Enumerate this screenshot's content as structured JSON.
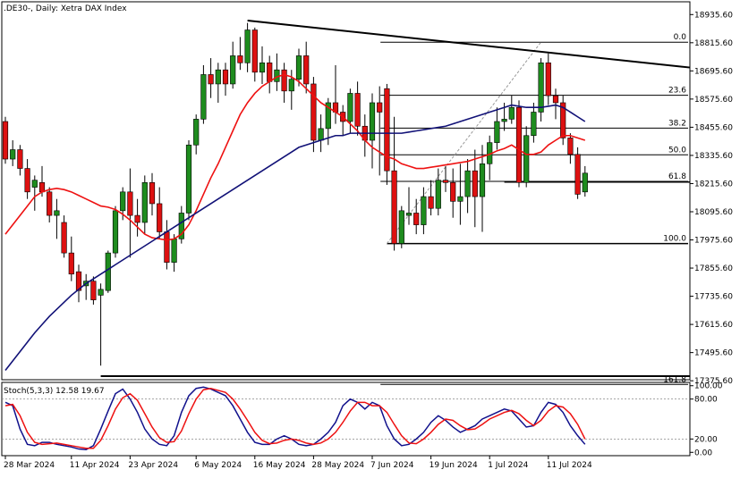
{
  "header": {
    "symbol": ".DE30-",
    "timeframe": "Daily",
    "instrument": "Xetra DAX Index",
    "title_text": ".DE30-, Daily:  Xetra DAX Index"
  },
  "oscillator_header": {
    "text": "Stoch(5,3,3) 12.58 19.67"
  },
  "colors": {
    "bull": "#1e8c1e",
    "bear": "#dd1111",
    "sma_fast": "#ee1111",
    "sma_slow": "#111177",
    "stoch_main": "#11118c",
    "stoch_signal": "#ee1111",
    "hline": "#000000",
    "text": "#000000"
  },
  "chart_data": [
    {
      "type": "candlestick",
      "title": ".DE30-, Daily:  Xetra DAX Index",
      "ylim": [
        17380,
        18990
      ],
      "y_ticks": [
        "18935.60",
        "18815.60",
        "18695.60",
        "18575.60",
        "18455.60",
        "18335.60",
        "18215.60",
        "18095.60",
        "17975.60",
        "17855.60",
        "17735.60",
        "17615.60",
        "17495.60",
        "17375.60"
      ],
      "x_ticks": [
        {
          "label": "28 Mar 2024",
          "bar": 0
        },
        {
          "label": "11 Apr 2024",
          "bar": 9
        },
        {
          "label": "23 Apr 2024",
          "bar": 17
        },
        {
          "label": "6 May 2024",
          "bar": 26
        },
        {
          "label": "16 May 2024",
          "bar": 34
        },
        {
          "label": "28 May 2024",
          "bar": 42
        },
        {
          "label": "7 Jun 2024",
          "bar": 50
        },
        {
          "label": "19 Jun 2024",
          "bar": 58
        },
        {
          "label": "1 Jul 2024",
          "bar": 66
        },
        {
          "label": "11 Jul 2024",
          "bar": 74
        }
      ],
      "ohlc": [
        [
          18480,
          18500,
          18300,
          18320
        ],
        [
          18320,
          18400,
          18290,
          18360
        ],
        [
          18360,
          18380,
          18250,
          18280
        ],
        [
          18280,
          18320,
          18150,
          18180
        ],
        [
          18200,
          18250,
          18100,
          18230
        ],
        [
          18220,
          18290,
          18160,
          18180
        ],
        [
          18180,
          18200,
          18050,
          18080
        ],
        [
          18080,
          18150,
          17980,
          18100
        ],
        [
          18050,
          18080,
          17900,
          17920
        ],
        [
          17920,
          17990,
          17800,
          17830
        ],
        [
          17840,
          17870,
          17710,
          17760
        ],
        [
          17780,
          17830,
          17720,
          17800
        ],
        [
          17800,
          17820,
          17700,
          17720
        ],
        [
          17740,
          17790,
          17440,
          17765
        ],
        [
          17760,
          17930,
          17750,
          17920
        ],
        [
          17920,
          18120,
          17900,
          18100
        ],
        [
          18100,
          18200,
          18060,
          18180
        ],
        [
          18180,
          18280,
          17900,
          18080
        ],
        [
          18080,
          18150,
          17990,
          18050
        ],
        [
          18050,
          18250,
          18000,
          18220
        ],
        [
          18220,
          18260,
          18080,
          18130
        ],
        [
          18130,
          18200,
          17980,
          18010
        ],
        [
          18010,
          18060,
          17850,
          17880
        ],
        [
          17880,
          18000,
          17840,
          17980
        ],
        [
          17980,
          18120,
          17960,
          18090
        ],
        [
          18090,
          18400,
          18060,
          18380
        ],
        [
          18380,
          18510,
          18340,
          18490
        ],
        [
          18490,
          18720,
          18470,
          18680
        ],
        [
          18680,
          18750,
          18580,
          18640
        ],
        [
          18640,
          18730,
          18560,
          18700
        ],
        [
          18700,
          18730,
          18590,
          18640
        ],
        [
          18640,
          18820,
          18620,
          18760
        ],
        [
          18760,
          18840,
          18700,
          18730
        ],
        [
          18730,
          18900,
          18690,
          18870
        ],
        [
          18870,
          18880,
          18650,
          18690
        ],
        [
          18690,
          18800,
          18640,
          18730
        ],
        [
          18730,
          18760,
          18600,
          18650
        ],
        [
          18650,
          18770,
          18610,
          18700
        ],
        [
          18700,
          18730,
          18560,
          18610
        ],
        [
          18610,
          18700,
          18530,
          18660
        ],
        [
          18660,
          18790,
          18630,
          18760
        ],
        [
          18760,
          18820,
          18600,
          18640
        ],
        [
          18640,
          18670,
          18350,
          18400
        ],
        [
          18400,
          18510,
          18350,
          18450
        ],
        [
          18450,
          18580,
          18380,
          18560
        ],
        [
          18560,
          18720,
          18470,
          18520
        ],
        [
          18520,
          18550,
          18420,
          18480
        ],
        [
          18480,
          18620,
          18430,
          18600
        ],
        [
          18600,
          18650,
          18420,
          18460
        ],
        [
          18460,
          18510,
          18330,
          18400
        ],
        [
          18400,
          18600,
          18280,
          18560
        ],
        [
          18560,
          18630,
          18250,
          18520
        ],
        [
          18620,
          18640,
          18210,
          18270
        ],
        [
          18270,
          18500,
          17930,
          17960
        ],
        [
          17960,
          18120,
          17940,
          18100
        ],
        [
          18080,
          18200,
          18040,
          18090
        ],
        [
          18090,
          18150,
          18000,
          18040
        ],
        [
          18040,
          18200,
          18000,
          18160
        ],
        [
          18160,
          18230,
          18080,
          18110
        ],
        [
          18110,
          18280,
          18080,
          18230
        ],
        [
          18230,
          18290,
          18180,
          18220
        ],
        [
          18220,
          18280,
          18070,
          18140
        ],
        [
          18140,
          18300,
          18040,
          18160
        ],
        [
          18160,
          18320,
          18090,
          18270
        ],
        [
          18270,
          18360,
          18030,
          18160
        ],
        [
          18160,
          18380,
          18010,
          18300
        ],
        [
          18300,
          18420,
          18230,
          18390
        ],
        [
          18390,
          18540,
          18360,
          18480
        ],
        [
          18480,
          18560,
          18440,
          18490
        ],
        [
          18490,
          18590,
          18470,
          18540
        ],
        [
          18540,
          18570,
          18200,
          18220
        ],
        [
          18220,
          18460,
          18200,
          18420
        ],
        [
          18420,
          18560,
          18390,
          18520
        ],
        [
          18520,
          18750,
          18480,
          18730
        ],
        [
          18730,
          18770,
          18550,
          18590
        ],
        [
          18590,
          18620,
          18490,
          18560
        ],
        [
          18560,
          18590,
          18380,
          18410
        ],
        [
          18410,
          18430,
          18300,
          18340
        ],
        [
          18340,
          18370,
          18150,
          18170
        ],
        [
          18180,
          18290,
          18160,
          18260
        ]
      ],
      "series": [
        {
          "name": "",
          "kind": "sma_fast",
          "values": [
            18000,
            18040,
            18080,
            18120,
            18160,
            18180,
            18190,
            18195,
            18190,
            18180,
            18165,
            18150,
            18135,
            18120,
            18115,
            18105,
            18085,
            18060,
            18030,
            18000,
            17985,
            17980,
            17975,
            17980,
            18000,
            18040,
            18100,
            18170,
            18240,
            18300,
            18370,
            18440,
            18510,
            18560,
            18600,
            18630,
            18650,
            18670,
            18680,
            18670,
            18650,
            18620,
            18590,
            18560,
            18540,
            18520,
            18500,
            18470,
            18440,
            18400,
            18370,
            18350,
            18330,
            18320,
            18300,
            18290,
            18280,
            18280,
            18285,
            18290,
            18295,
            18300,
            18305,
            18310,
            18320,
            18330,
            18340,
            18355,
            18365,
            18380,
            18360,
            18340,
            18340,
            18350,
            18380,
            18400,
            18420,
            18420,
            18410,
            18400
          ]
        },
        {
          "name": "",
          "kind": "sma_slow",
          "values": [
            17420,
            17460,
            17500,
            17540,
            17580,
            17615,
            17650,
            17680,
            17710,
            17740,
            17765,
            17790,
            17810,
            17830,
            17850,
            17870,
            17890,
            17910,
            17930,
            17950,
            17970,
            17990,
            18010,
            18030,
            18050,
            18070,
            18090,
            18110,
            18130,
            18150,
            18170,
            18190,
            18210,
            18230,
            18250,
            18270,
            18290,
            18310,
            18330,
            18350,
            18370,
            18380,
            18390,
            18400,
            18410,
            18420,
            18420,
            18430,
            18430,
            18430,
            18430,
            18430,
            18430,
            18430,
            18430,
            18435,
            18440,
            18445,
            18450,
            18455,
            18460,
            18470,
            18480,
            18490,
            18500,
            18510,
            18520,
            18530,
            18540,
            18550,
            18545,
            18540,
            18540,
            18540,
            18545,
            18550,
            18540,
            18520,
            18500,
            18480
          ]
        }
      ],
      "fibonacci": [
        {
          "label": "0.0",
          "value": 18818
        },
        {
          "label": "23.6",
          "value": 18592
        },
        {
          "label": "38.2",
          "value": 18452
        },
        {
          "label": "50.0",
          "value": 18338
        },
        {
          "label": "61.8",
          "value": 18225
        },
        {
          "label": "100.0",
          "value": 17960
        },
        {
          "label": "161.8",
          "value": 17360
        }
      ],
      "trendline": {
        "from": {
          "bar": 33,
          "value": 18910
        },
        "to": {
          "bar": 81,
          "value": 18710
        }
      },
      "support_line": {
        "value": 18222,
        "from_bar": 68
      },
      "low_line": {
        "value": 17944,
        "from_bar": 53
      },
      "bottom_line": {
        "value": 17395,
        "from_bar": 13
      }
    },
    {
      "type": "line",
      "title": "Stoch(5,3,3) 12.58 19.67",
      "ylim": [
        -5,
        105
      ],
      "y_ticks": [
        "100.00",
        "80.00",
        "20.00",
        "0.00"
      ],
      "levels": [
        80,
        20
      ],
      "series": [
        {
          "name": "",
          "kind": "main",
          "values": [
            75,
            70,
            35,
            12,
            10,
            15,
            15,
            12,
            10,
            8,
            5,
            4,
            10,
            35,
            62,
            88,
            95,
            80,
            60,
            35,
            20,
            12,
            10,
            25,
            60,
            85,
            96,
            98,
            95,
            90,
            85,
            70,
            50,
            30,
            15,
            12,
            12,
            20,
            25,
            20,
            12,
            10,
            12,
            20,
            30,
            45,
            70,
            80,
            75,
            65,
            75,
            70,
            40,
            20,
            10,
            12,
            20,
            30,
            45,
            55,
            48,
            38,
            30,
            35,
            40,
            50,
            55,
            60,
            65,
            62,
            50,
            38,
            40,
            60,
            75,
            72,
            60,
            40,
            25,
            12
          ]
        },
        {
          "name": "",
          "kind": "signal",
          "values": [
            70,
            72,
            55,
            30,
            15,
            12,
            13,
            14,
            12,
            10,
            8,
            6,
            6,
            18,
            40,
            65,
            82,
            88,
            78,
            58,
            38,
            22,
            15,
            16,
            32,
            58,
            80,
            94,
            96,
            93,
            90,
            80,
            65,
            48,
            30,
            18,
            13,
            14,
            18,
            20,
            18,
            14,
            12,
            14,
            20,
            30,
            45,
            62,
            75,
            75,
            70,
            70,
            60,
            42,
            25,
            14,
            13,
            20,
            30,
            42,
            50,
            48,
            40,
            34,
            35,
            42,
            50,
            55,
            60,
            63,
            58,
            48,
            40,
            48,
            62,
            70,
            68,
            58,
            42,
            20
          ]
        }
      ]
    }
  ]
}
